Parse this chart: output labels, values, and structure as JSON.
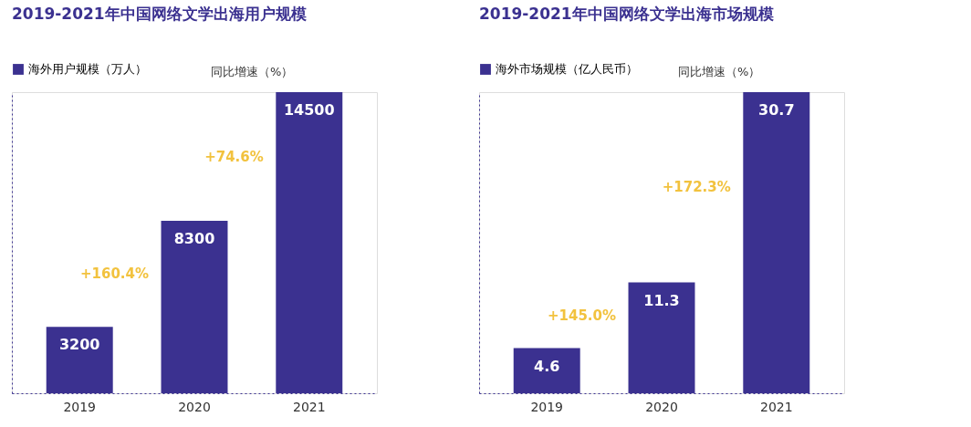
{
  "chart_data": [
    {
      "type": "bar",
      "title": "2019-2021年中国网络文学出海用户规模",
      "categories": [
        "2019",
        "2020",
        "2021"
      ],
      "series": [
        {
          "name": "海外用户规模（万人）",
          "color": "#3b3190",
          "values": [
            3200,
            8300,
            14500
          ]
        }
      ],
      "data_labels": true,
      "legend": "top left",
      "tick_labels": "x",
      "grid": false,
      "annotations": [
        "同比增速（%）",
        "+160.4%",
        "+74.6%"
      ]
    },
    {
      "type": "bar",
      "title": "2019-2021年中国网络文学出海市场规模",
      "categories": [
        "2019",
        "2020",
        "2021"
      ],
      "series": [
        {
          "name": "海外市场规模（亿人民币）",
          "color": "#3b3190",
          "values": [
            4.6,
            11.3,
            30.7
          ]
        }
      ],
      "data_labels": true,
      "legend": "top left",
      "tick_labels": "x",
      "grid": false,
      "annotations": [
        "同比增速（%）",
        "+145.0%",
        "+172.3%"
      ]
    }
  ]
}
